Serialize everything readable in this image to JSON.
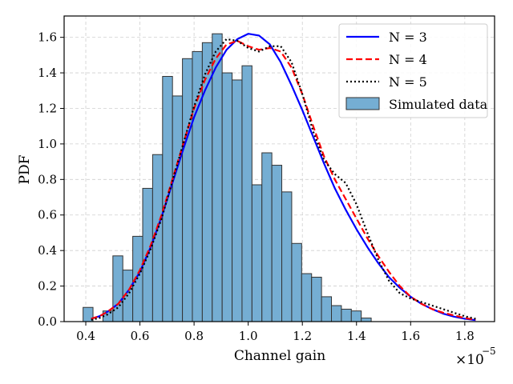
{
  "chart_data": {
    "type": "bar",
    "title": "",
    "xlabel": "Channel gain",
    "ylabel": "PDF",
    "x_scale_label": "×10",
    "x_scale_exponent": "−5",
    "xlim": [
      0.32,
      1.91
    ],
    "ylim": [
      0,
      1.72
    ],
    "xticks": [
      0.4,
      0.6,
      0.8,
      1.0,
      1.2,
      1.4,
      1.6,
      1.8
    ],
    "xtick_labels": [
      "0.4",
      "0.6",
      "0.8",
      "1.0",
      "1.2",
      "1.4",
      "1.6",
      "1.8"
    ],
    "yticks": [
      0.0,
      0.2,
      0.4,
      0.6,
      0.8,
      1.0,
      1.2,
      1.4,
      1.6
    ],
    "ytick_labels": [
      "0.0",
      "0.2",
      "0.4",
      "0.6",
      "0.8",
      "1.0",
      "1.2",
      "1.4",
      "1.6"
    ],
    "grid": true,
    "legend_position": "top-right",
    "histogram": {
      "name": "Simulated data",
      "color": "#75aed3",
      "edge_color": "#333333",
      "bin_start": 0.39,
      "bin_width": 0.0367,
      "values": [
        0.08,
        0.0,
        0.06,
        0.37,
        0.29,
        0.48,
        0.75,
        0.94,
        1.38,
        1.27,
        1.48,
        1.52,
        1.57,
        1.62,
        1.4,
        1.36,
        1.44,
        0.77,
        0.95,
        0.88,
        0.73,
        0.44,
        0.27,
        0.25,
        0.14,
        0.09,
        0.07,
        0.06,
        0.02
      ]
    },
    "series": [
      {
        "name": "N = 3",
        "color": "#0000ff",
        "dash": "solid",
        "points": [
          [
            0.42,
            0.016
          ],
          [
            0.45,
            0.03
          ],
          [
            0.48,
            0.055
          ],
          [
            0.52,
            0.1
          ],
          [
            0.56,
            0.18
          ],
          [
            0.6,
            0.28
          ],
          [
            0.64,
            0.42
          ],
          [
            0.68,
            0.59
          ],
          [
            0.72,
            0.78
          ],
          [
            0.76,
            0.97
          ],
          [
            0.8,
            1.15
          ],
          [
            0.84,
            1.3
          ],
          [
            0.88,
            1.43
          ],
          [
            0.92,
            1.53
          ],
          [
            0.96,
            1.59
          ],
          [
            1.0,
            1.62
          ],
          [
            1.04,
            1.61
          ],
          [
            1.08,
            1.56
          ],
          [
            1.12,
            1.46
          ],
          [
            1.16,
            1.33
          ],
          [
            1.2,
            1.19
          ],
          [
            1.24,
            1.04
          ],
          [
            1.28,
            0.89
          ],
          [
            1.32,
            0.75
          ],
          [
            1.36,
            0.63
          ],
          [
            1.4,
            0.52
          ],
          [
            1.44,
            0.42
          ],
          [
            1.48,
            0.33
          ],
          [
            1.52,
            0.25
          ],
          [
            1.56,
            0.19
          ],
          [
            1.6,
            0.14
          ],
          [
            1.64,
            0.1
          ],
          [
            1.68,
            0.07
          ],
          [
            1.72,
            0.045
          ],
          [
            1.76,
            0.028
          ],
          [
            1.8,
            0.016
          ],
          [
            1.84,
            0.008
          ]
        ]
      },
      {
        "name": "N = 4",
        "color": "#ff0000",
        "dash": "dashed",
        "points": [
          [
            0.42,
            0.016
          ],
          [
            0.45,
            0.03
          ],
          [
            0.48,
            0.055
          ],
          [
            0.52,
            0.1
          ],
          [
            0.56,
            0.18
          ],
          [
            0.6,
            0.29
          ],
          [
            0.64,
            0.43
          ],
          [
            0.68,
            0.6
          ],
          [
            0.72,
            0.8
          ],
          [
            0.76,
            1.0
          ],
          [
            0.8,
            1.2
          ],
          [
            0.84,
            1.36
          ],
          [
            0.88,
            1.48
          ],
          [
            0.92,
            1.56
          ],
          [
            0.96,
            1.58
          ],
          [
            1.0,
            1.55
          ],
          [
            1.04,
            1.53
          ],
          [
            1.08,
            1.54
          ],
          [
            1.12,
            1.52
          ],
          [
            1.16,
            1.43
          ],
          [
            1.2,
            1.28
          ],
          [
            1.24,
            1.1
          ],
          [
            1.28,
            0.93
          ],
          [
            1.32,
            0.8
          ],
          [
            1.36,
            0.69
          ],
          [
            1.4,
            0.58
          ],
          [
            1.44,
            0.47
          ],
          [
            1.48,
            0.37
          ],
          [
            1.52,
            0.28
          ],
          [
            1.56,
            0.2
          ],
          [
            1.6,
            0.14
          ],
          [
            1.64,
            0.1
          ],
          [
            1.68,
            0.07
          ],
          [
            1.72,
            0.05
          ],
          [
            1.76,
            0.035
          ],
          [
            1.8,
            0.02
          ],
          [
            1.84,
            0.01
          ]
        ]
      },
      {
        "name": "N = 5",
        "color": "#000000",
        "dash": "dotted",
        "points": [
          [
            0.42,
            0.01
          ],
          [
            0.45,
            0.02
          ],
          [
            0.48,
            0.04
          ],
          [
            0.52,
            0.08
          ],
          [
            0.56,
            0.16
          ],
          [
            0.6,
            0.27
          ],
          [
            0.64,
            0.41
          ],
          [
            0.68,
            0.58
          ],
          [
            0.72,
            0.79
          ],
          [
            0.76,
            1.0
          ],
          [
            0.8,
            1.21
          ],
          [
            0.84,
            1.39
          ],
          [
            0.88,
            1.52
          ],
          [
            0.92,
            1.59
          ],
          [
            0.96,
            1.58
          ],
          [
            1.0,
            1.54
          ],
          [
            1.04,
            1.52
          ],
          [
            1.08,
            1.55
          ],
          [
            1.12,
            1.55
          ],
          [
            1.16,
            1.46
          ],
          [
            1.2,
            1.28
          ],
          [
            1.24,
            1.07
          ],
          [
            1.28,
            0.91
          ],
          [
            1.32,
            0.83
          ],
          [
            1.36,
            0.78
          ],
          [
            1.4,
            0.66
          ],
          [
            1.44,
            0.5
          ],
          [
            1.48,
            0.35
          ],
          [
            1.52,
            0.23
          ],
          [
            1.56,
            0.16
          ],
          [
            1.6,
            0.13
          ],
          [
            1.64,
            0.11
          ],
          [
            1.68,
            0.09
          ],
          [
            1.72,
            0.07
          ],
          [
            1.76,
            0.05
          ],
          [
            1.8,
            0.03
          ],
          [
            1.84,
            0.016
          ]
        ]
      }
    ],
    "legend_entries": [
      "N = 3",
      "N = 4",
      "N = 5",
      "Simulated data"
    ]
  }
}
